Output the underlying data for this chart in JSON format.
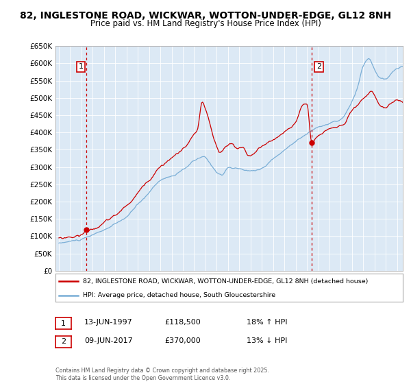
{
  "title_line1": "82, INGLESTONE ROAD, WICKWAR, WOTTON-UNDER-EDGE, GL12 8NH",
  "title_line2": "Price paid vs. HM Land Registry's House Price Index (HPI)",
  "background_color": "#ffffff",
  "plot_bg_color": "#dce9f5",
  "grid_color": "#ffffff",
  "red_color": "#cc0000",
  "blue_color": "#7aaed6",
  "ylim_min": 0,
  "ylim_max": 650000,
  "ytick_step": 50000,
  "legend_label_red": "82, INGLESTONE ROAD, WICKWAR, WOTTON-UNDER-EDGE, GL12 8NH (detached house)",
  "legend_label_blue": "HPI: Average price, detached house, South Gloucestershire",
  "annotation1_date": "13-JUN-1997",
  "annotation1_price": "£118,500",
  "annotation1_hpi": "18% ↑ HPI",
  "annotation2_date": "09-JUN-2017",
  "annotation2_price": "£370,000",
  "annotation2_hpi": "13% ↓ HPI",
  "footer": "Contains HM Land Registry data © Crown copyright and database right 2025.\nThis data is licensed under the Open Government Licence v3.0.",
  "sale1_year": 1997.45,
  "sale1_price": 118500,
  "sale2_year": 2017.44,
  "sale2_price": 370000
}
